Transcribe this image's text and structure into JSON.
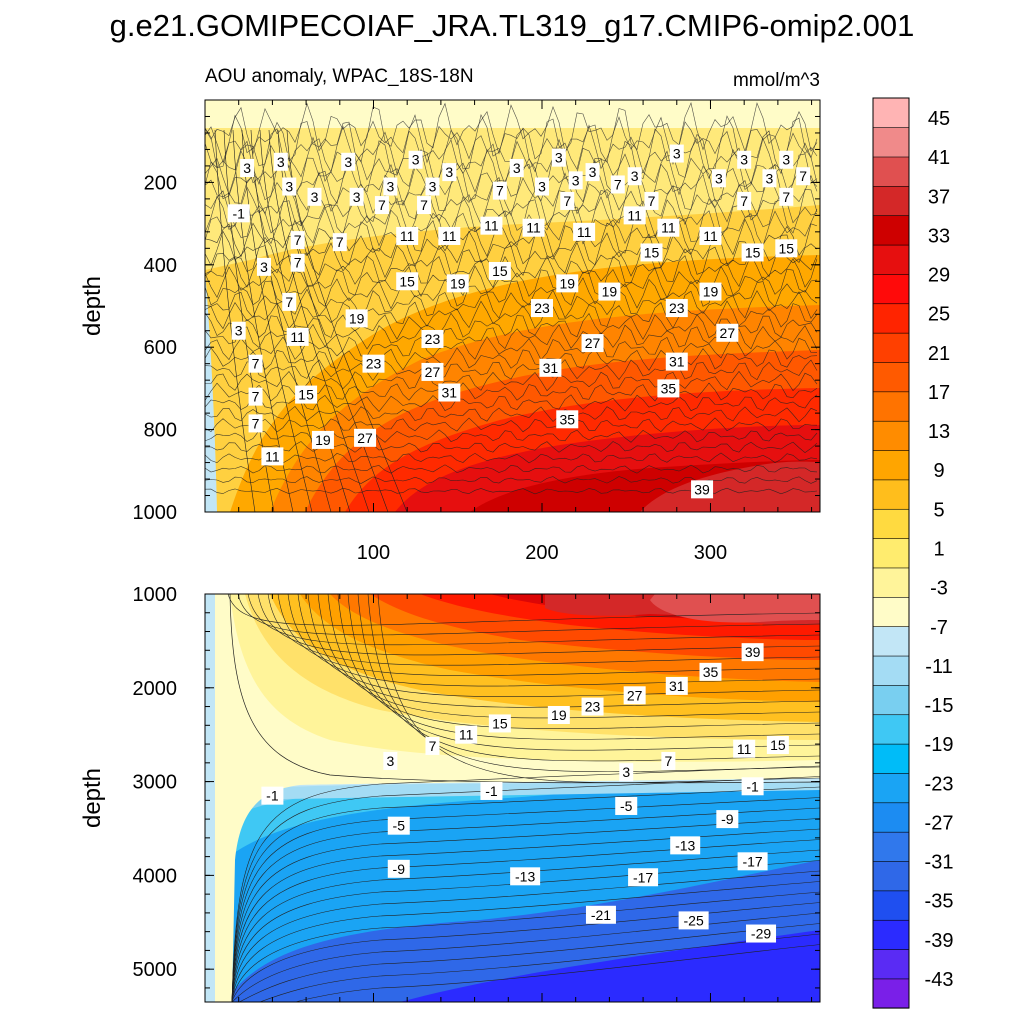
{
  "title": "g.e21.GOMIPECOIAF_JRA.TL319_g17.CMIP6-omip2.001",
  "chart_data": {
    "type": "contour",
    "field_label": "AOU anomaly, WPAC_18S-18N",
    "units": "mmol/m^3",
    "x_axis": {
      "range": [
        0,
        365
      ],
      "ticks": [
        100,
        200,
        300
      ],
      "tick_labels": [
        "100",
        "200",
        "300"
      ]
    },
    "top_panel": {
      "ylabel": "depth",
      "ylim": [
        0,
        1000
      ],
      "yticks": [
        200,
        400,
        600,
        800,
        1000
      ],
      "ytick_labels": [
        "200",
        "400",
        "600",
        "800",
        "1000"
      ],
      "contour_labels": [
        {
          "x": 20,
          "y": 275,
          "v": "-1"
        },
        {
          "x": 25,
          "y": 165,
          "v": "3"
        },
        {
          "x": 45,
          "y": 150,
          "v": "3"
        },
        {
          "x": 85,
          "y": 150,
          "v": "3"
        },
        {
          "x": 125,
          "y": 145,
          "v": "3"
        },
        {
          "x": 145,
          "y": 175,
          "v": "3"
        },
        {
          "x": 185,
          "y": 165,
          "v": "3"
        },
        {
          "x": 210,
          "y": 140,
          "v": "3"
        },
        {
          "x": 230,
          "y": 175,
          "v": "3"
        },
        {
          "x": 280,
          "y": 130,
          "v": "3"
        },
        {
          "x": 320,
          "y": 145,
          "v": "3"
        },
        {
          "x": 345,
          "y": 145,
          "v": "3"
        },
        {
          "x": 50,
          "y": 210,
          "v": "3"
        },
        {
          "x": 65,
          "y": 235,
          "v": "3"
        },
        {
          "x": 90,
          "y": 235,
          "v": "3"
        },
        {
          "x": 110,
          "y": 210,
          "v": "3"
        },
        {
          "x": 135,
          "y": 210,
          "v": "3"
        },
        {
          "x": 175,
          "y": 220,
          "v": "7"
        },
        {
          "x": 200,
          "y": 210,
          "v": "3"
        },
        {
          "x": 220,
          "y": 195,
          "v": "3"
        },
        {
          "x": 245,
          "y": 205,
          "v": "7"
        },
        {
          "x": 255,
          "y": 185,
          "v": "3"
        },
        {
          "x": 305,
          "y": 190,
          "v": "3"
        },
        {
          "x": 335,
          "y": 190,
          "v": "3"
        },
        {
          "x": 355,
          "y": 185,
          "v": "7"
        },
        {
          "x": 35,
          "y": 405,
          "v": "3"
        },
        {
          "x": 20,
          "y": 560,
          "v": "3"
        },
        {
          "x": 55,
          "y": 340,
          "v": "7"
        },
        {
          "x": 55,
          "y": 395,
          "v": "7"
        },
        {
          "x": 80,
          "y": 345,
          "v": "7"
        },
        {
          "x": 105,
          "y": 255,
          "v": "7"
        },
        {
          "x": 130,
          "y": 255,
          "v": "7"
        },
        {
          "x": 215,
          "y": 245,
          "v": "7"
        },
        {
          "x": 265,
          "y": 245,
          "v": "7"
        },
        {
          "x": 320,
          "y": 245,
          "v": "7"
        },
        {
          "x": 345,
          "y": 235,
          "v": "7"
        },
        {
          "x": 50,
          "y": 490,
          "v": "7"
        },
        {
          "x": 30,
          "y": 640,
          "v": "7"
        },
        {
          "x": 30,
          "y": 720,
          "v": "7"
        },
        {
          "x": 30,
          "y": 785,
          "v": "7"
        },
        {
          "x": 120,
          "y": 330,
          "v": "11"
        },
        {
          "x": 145,
          "y": 330,
          "v": "11"
        },
        {
          "x": 170,
          "y": 305,
          "v": "11"
        },
        {
          "x": 195,
          "y": 310,
          "v": "11"
        },
        {
          "x": 225,
          "y": 320,
          "v": "11"
        },
        {
          "x": 255,
          "y": 280,
          "v": "11"
        },
        {
          "x": 275,
          "y": 310,
          "v": "11"
        },
        {
          "x": 300,
          "y": 330,
          "v": "11"
        },
        {
          "x": 55,
          "y": 575,
          "v": "11"
        },
        {
          "x": 40,
          "y": 865,
          "v": "11"
        },
        {
          "x": 265,
          "y": 370,
          "v": "15"
        },
        {
          "x": 175,
          "y": 415,
          "v": "15"
        },
        {
          "x": 120,
          "y": 440,
          "v": "15"
        },
        {
          "x": 325,
          "y": 370,
          "v": "15"
        },
        {
          "x": 345,
          "y": 360,
          "v": "15"
        },
        {
          "x": 60,
          "y": 715,
          "v": "15"
        },
        {
          "x": 150,
          "y": 445,
          "v": "19"
        },
        {
          "x": 215,
          "y": 445,
          "v": "19"
        },
        {
          "x": 240,
          "y": 465,
          "v": "19"
        },
        {
          "x": 300,
          "y": 465,
          "v": "19"
        },
        {
          "x": 90,
          "y": 530,
          "v": "19"
        },
        {
          "x": 70,
          "y": 825,
          "v": "19"
        },
        {
          "x": 280,
          "y": 505,
          "v": "23"
        },
        {
          "x": 200,
          "y": 505,
          "v": "23"
        },
        {
          "x": 135,
          "y": 580,
          "v": "23"
        },
        {
          "x": 100,
          "y": 640,
          "v": "23"
        },
        {
          "x": 230,
          "y": 590,
          "v": "27"
        },
        {
          "x": 310,
          "y": 565,
          "v": "27"
        },
        {
          "x": 135,
          "y": 660,
          "v": "27"
        },
        {
          "x": 95,
          "y": 820,
          "v": "27"
        },
        {
          "x": 205,
          "y": 650,
          "v": "31"
        },
        {
          "x": 280,
          "y": 635,
          "v": "31"
        },
        {
          "x": 145,
          "y": 710,
          "v": "31"
        },
        {
          "x": 275,
          "y": 700,
          "v": "35"
        },
        {
          "x": 215,
          "y": 775,
          "v": "35"
        },
        {
          "x": 295,
          "y": 945,
          "v": "39"
        }
      ]
    },
    "bottom_panel": {
      "ylabel": "depth",
      "ylim": [
        1000,
        5350
      ],
      "yticks": [
        1000,
        2000,
        3000,
        4000,
        5000
      ],
      "ytick_labels": [
        "1000",
        "2000",
        "3000",
        "4000",
        "5000"
      ],
      "contour_labels": [
        {
          "x": 325,
          "y": 1620,
          "v": "39"
        },
        {
          "x": 300,
          "y": 1830,
          "v": "35"
        },
        {
          "x": 280,
          "y": 1980,
          "v": "31"
        },
        {
          "x": 255,
          "y": 2080,
          "v": "27"
        },
        {
          "x": 230,
          "y": 2200,
          "v": "23"
        },
        {
          "x": 210,
          "y": 2290,
          "v": "19"
        },
        {
          "x": 175,
          "y": 2380,
          "v": "15"
        },
        {
          "x": 340,
          "y": 2610,
          "v": "15"
        },
        {
          "x": 155,
          "y": 2500,
          "v": "11"
        },
        {
          "x": 320,
          "y": 2650,
          "v": "11"
        },
        {
          "x": 135,
          "y": 2620,
          "v": "7"
        },
        {
          "x": 275,
          "y": 2780,
          "v": "7"
        },
        {
          "x": 110,
          "y": 2780,
          "v": "3"
        },
        {
          "x": 250,
          "y": 2900,
          "v": "3"
        },
        {
          "x": 40,
          "y": 3150,
          "v": "-1"
        },
        {
          "x": 170,
          "y": 3100,
          "v": "-1"
        },
        {
          "x": 325,
          "y": 3050,
          "v": "-1"
        },
        {
          "x": 115,
          "y": 3470,
          "v": "-5"
        },
        {
          "x": 250,
          "y": 3260,
          "v": "-5"
        },
        {
          "x": 310,
          "y": 3400,
          "v": "-9"
        },
        {
          "x": 115,
          "y": 3930,
          "v": "-9"
        },
        {
          "x": 285,
          "y": 3680,
          "v": "-13"
        },
        {
          "x": 190,
          "y": 4010,
          "v": "-13"
        },
        {
          "x": 325,
          "y": 3850,
          "v": "-17"
        },
        {
          "x": 260,
          "y": 4020,
          "v": "-17"
        },
        {
          "x": 235,
          "y": 4420,
          "v": "-21"
        },
        {
          "x": 290,
          "y": 4480,
          "v": "-25"
        },
        {
          "x": 330,
          "y": 4620,
          "v": "-29"
        }
      ]
    },
    "colorbar": {
      "levels": [
        -43,
        -39,
        -35,
        -31,
        -27,
        -23,
        -19,
        -15,
        -11,
        -7,
        -3,
        1,
        5,
        9,
        13,
        17,
        21,
        25,
        29,
        33,
        37,
        41,
        45
      ],
      "labels": [
        "45",
        "41",
        "37",
        "33",
        "29",
        "25",
        "21",
        "17",
        "13",
        "9",
        "5",
        "1",
        "-3",
        "-7",
        "-11",
        "-15",
        "-19",
        "-23",
        "-27",
        "-31",
        "-35",
        "-39",
        "-43"
      ],
      "colors": [
        "#7A1FE8",
        "#5A2BF4",
        "#2B2BFF",
        "#1F4FF0",
        "#2F68E8",
        "#3078EC",
        "#1C8CF2",
        "#1AA4F4",
        "#00BCF8",
        "#3FC8F4",
        "#79CFF0",
        "#A4DCF4",
        "#C2E6F6",
        "#FFFCC8",
        "#FFF49A",
        "#FFEC6E",
        "#FFDA40",
        "#FFBE1C",
        "#FFA500",
        "#FF8C00",
        "#FF7300",
        "#FF5A00",
        "#FF4000",
        "#FF2400",
        "#FF0A0A",
        "#E60F0F",
        "#CE0000",
        "#D42828",
        "#E05050",
        "#F08A8A",
        "#FFB4B4"
      ]
    }
  }
}
